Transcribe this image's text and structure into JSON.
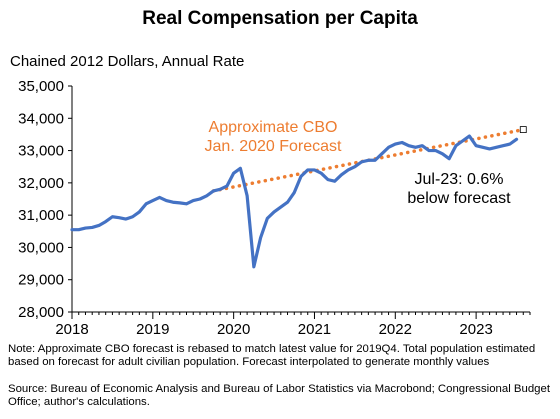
{
  "chart_data": {
    "type": "line",
    "title": "Real Compensation per Capita",
    "ylabel": "Chained 2012 Dollars, Annual Rate",
    "xlabel": "",
    "ylim": [
      28000,
      35000
    ],
    "xlim": [
      "2018-01",
      "2023-09"
    ],
    "y_ticks": [
      "28,000",
      "29,000",
      "30,000",
      "31,000",
      "32,000",
      "33,000",
      "34,000",
      "35,000"
    ],
    "x_ticks": [
      "2018",
      "2019",
      "2020",
      "2021",
      "2022",
      "2023"
    ],
    "grid": false,
    "series": [
      {
        "name": "",
        "color": "#4472C4",
        "x": [
          "2018-01",
          "2018-02",
          "2018-03",
          "2018-04",
          "2018-05",
          "2018-06",
          "2018-07",
          "2018-08",
          "2018-09",
          "2018-10",
          "2018-11",
          "2018-12",
          "2019-01",
          "2019-02",
          "2019-03",
          "2019-04",
          "2019-05",
          "2019-06",
          "2019-07",
          "2019-08",
          "2019-09",
          "2019-10",
          "2019-11",
          "2019-12",
          "2020-01",
          "2020-02",
          "2020-03",
          "2020-04",
          "2020-05",
          "2020-06",
          "2020-07",
          "2020-08",
          "2020-09",
          "2020-10",
          "2020-11",
          "2020-12",
          "2021-01",
          "2021-02",
          "2021-03",
          "2021-04",
          "2021-05",
          "2021-06",
          "2021-07",
          "2021-08",
          "2021-09",
          "2021-10",
          "2021-11",
          "2021-12",
          "2022-01",
          "2022-02",
          "2022-03",
          "2022-04",
          "2022-05",
          "2022-06",
          "2022-07",
          "2022-08",
          "2022-09",
          "2022-10",
          "2022-11",
          "2022-12",
          "2023-01",
          "2023-02",
          "2023-03",
          "2023-04",
          "2023-05",
          "2023-06",
          "2023-07"
        ],
        "values": [
          30550,
          30550,
          30600,
          30620,
          30680,
          30800,
          30950,
          30920,
          30880,
          30950,
          31100,
          31350,
          31450,
          31550,
          31450,
          31400,
          31380,
          31350,
          31450,
          31500,
          31600,
          31750,
          31800,
          31900,
          32300,
          32450,
          31600,
          29400,
          30300,
          30900,
          31100,
          31250,
          31400,
          31700,
          32200,
          32400,
          32400,
          32300,
          32100,
          32050,
          32250,
          32400,
          32500,
          32650,
          32700,
          32700,
          32900,
          33100,
          33200,
          33250,
          33150,
          33100,
          33150,
          33000,
          33000,
          32900,
          32750,
          33150,
          33300,
          33450,
          33150,
          33100,
          33050,
          33100,
          33150,
          33200,
          33350
        ]
      },
      {
        "name": "Approximate CBO Jan. 2020 Forecast",
        "color": "#ED7D31",
        "style": "dotted",
        "x": [
          "2019-10",
          "2023-08"
        ],
        "values": [
          31750,
          33650
        ]
      }
    ],
    "annotations": [
      {
        "text_lines": [
          "Approximate CBO",
          "Jan. 2020 Forecast"
        ],
        "color": "#ED7D31"
      },
      {
        "text_lines": [
          "Jul-23: 0.6%",
          "below forecast"
        ],
        "color": "#000000"
      }
    ]
  },
  "note": "Note: Approximate CBO forecast is rebased to match latest value for 2019Q4. Total population estimated based on forecast for adult civilian population.  Forecast interpolated to generate monthly values",
  "source": "Source: Bureau of Economic Analysis and Bureau of Labor Statistics via Macrobond; Congressional Budget Office; author's calculations."
}
